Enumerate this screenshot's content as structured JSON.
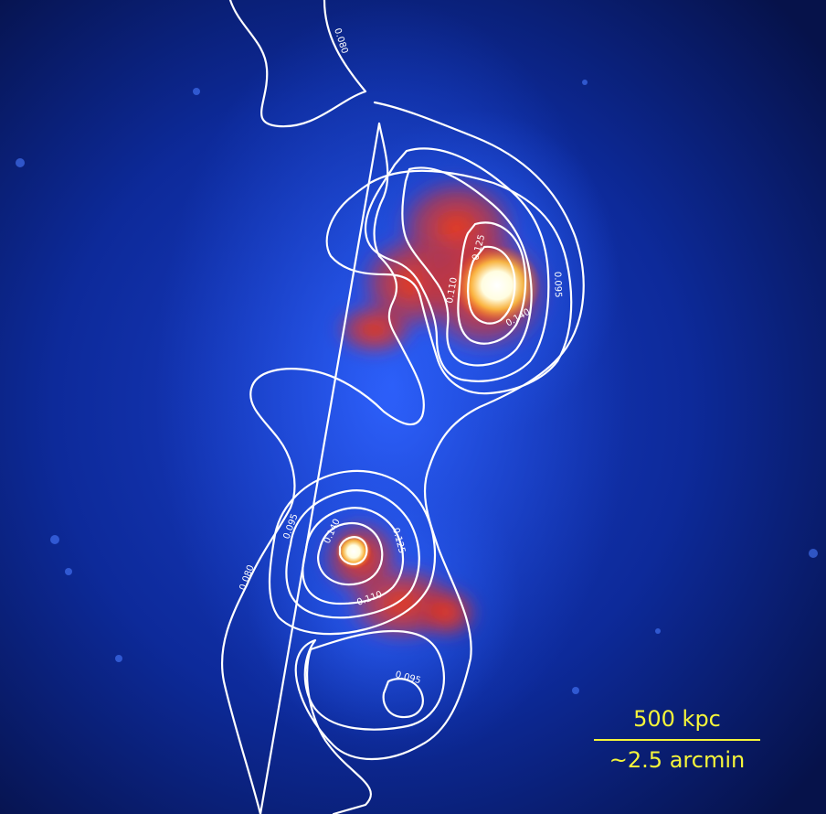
{
  "contour_labels": [
    "0.080",
    "0.095",
    "0.110",
    "0.125",
    "0.140"
  ],
  "scale_bar": {
    "length_label": "500 kpc",
    "angle_label": "~2.5 arcmin",
    "color": "#f5f53a"
  },
  "colors": {
    "background": "#06124a",
    "emission_low": "#1f4fe0",
    "emission_mid": "#ff4a1a",
    "emission_peak": "#ffffff",
    "contour": "#ffffff"
  }
}
